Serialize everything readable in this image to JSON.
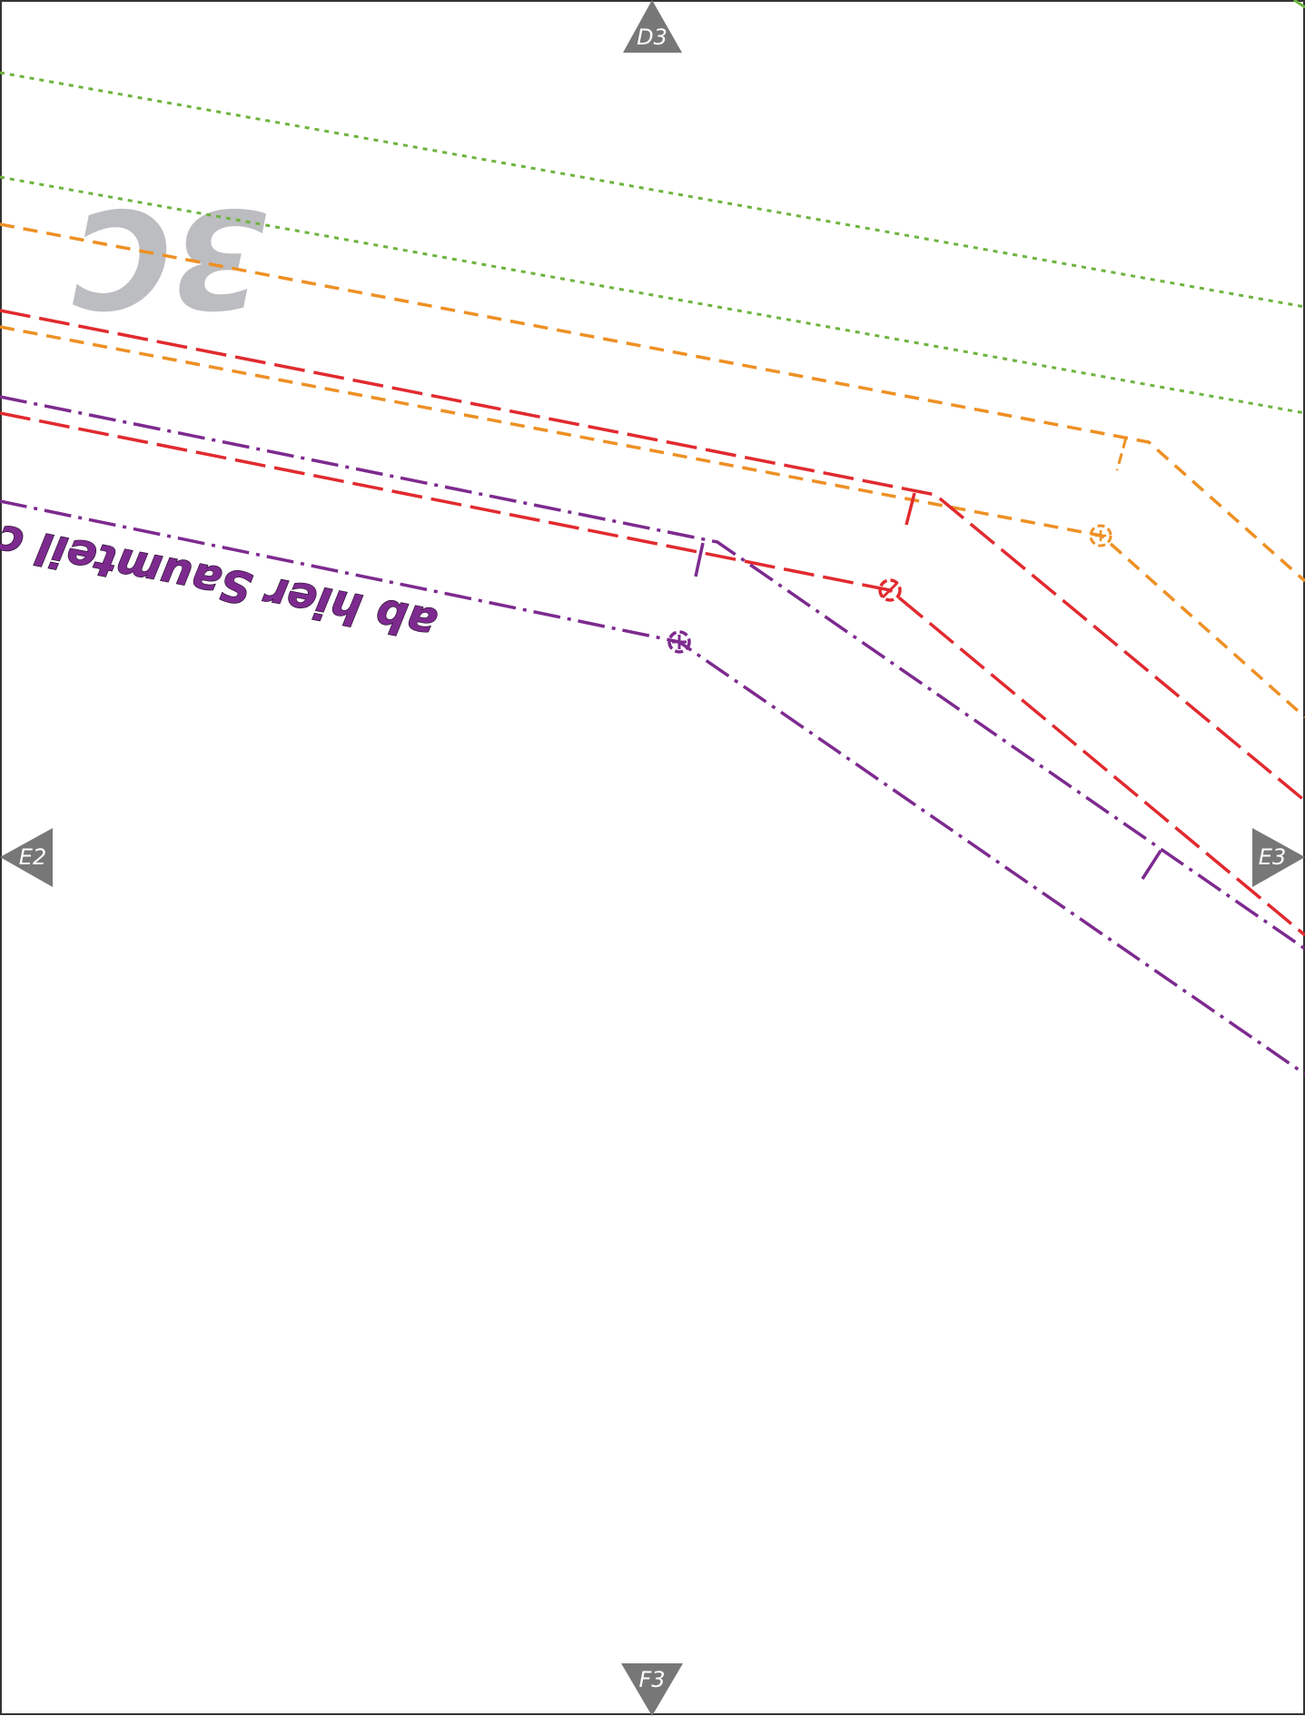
{
  "sheet": {
    "page_label": "3C",
    "neighbors": {
      "top": "D3",
      "bottom": "F3",
      "left": "E2",
      "right": "E3"
    },
    "annotation": "ab hier Saumteil c"
  },
  "colors": {
    "border": "#333333",
    "marker_fill": "#777777",
    "page_label": "#bcbdc0",
    "green_dotted": "#6db43e",
    "orange_dashed": "#ee9024",
    "red_dashed": "#e12a2f",
    "purple_dashdot": "#7d2a8f"
  }
}
